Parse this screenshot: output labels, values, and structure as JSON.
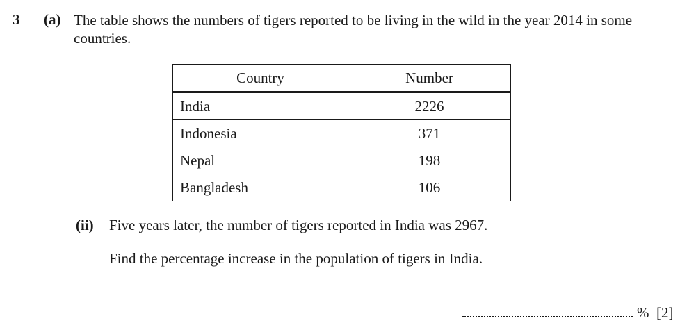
{
  "question": {
    "number": "3",
    "part_label": "(a)",
    "intro": "The table shows the numbers of tigers reported to be living in the wild in the year 2014 in some countries."
  },
  "table": {
    "headers": [
      "Country",
      "Number"
    ],
    "rows": [
      {
        "country": "India",
        "number": "2226"
      },
      {
        "country": "Indonesia",
        "number": "371"
      },
      {
        "country": "Nepal",
        "number": "198"
      },
      {
        "country": "Bangladesh",
        "number": "106"
      }
    ]
  },
  "subpart": {
    "label": "(ii)",
    "statement": "Five years later, the number of tigers reported in India was 2967.",
    "instruction": "Find the percentage increase in the population of tigers in India."
  },
  "answer": {
    "unit": "%",
    "marks": "[2]"
  }
}
